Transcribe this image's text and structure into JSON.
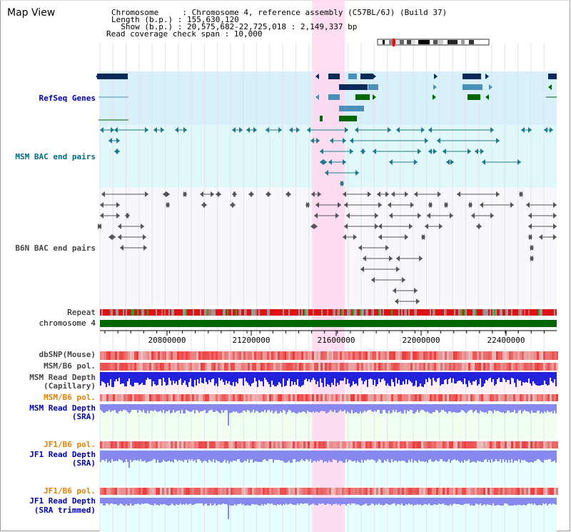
{
  "title": "Map View",
  "info": {
    "line1": "Chromosome     : Chromosome 4, reference assembly (C57BL/6J) (Build 37)",
    "line2": "Length (b.p.) : 155,630,120",
    "line3": "  Show (b.p.) : 20,575,682-22,725,018 : 2,149,337 bp",
    "line4": "Read coverage check span : 10,000"
  },
  "tracks": {
    "refseq": "RefSeq Genes",
    "msm_bac": "MSM BAC end pairs",
    "b6n_bac": "B6N BAC end pairs",
    "repeat": "Repeat",
    "chromosome": "chromosome 4",
    "dbsnp": "dbSNP(Mouse)",
    "msm_b6_pol_1": "MSM/B6 pol.",
    "msm_read_cap_1": "MSM Read Depth",
    "msm_read_cap_2": "(Capillary)",
    "msm_b6_pol_2": "MSM/B6 pol.",
    "msm_read_sra_1": "MSM Read Depth",
    "msm_read_sra_2": "(SRA)",
    "jf1_b6_pol_1": "JF1/B6 pol.",
    "jf1_read_sra_1": "JF1 Read Depth",
    "jf1_read_sra_2": "(SRA)",
    "jf1_b6_pol_2": "JF1/B6 pol.",
    "jf1_read_trim_1": "JF1 Read Depth",
    "jf1_read_trim_2": "(SRA trimmed)"
  },
  "axis": {
    "ticks": [
      "20800000",
      "21200000",
      "21600000",
      "22000000",
      "22400000"
    ]
  },
  "colors": {
    "highlight": "#ffd8f0",
    "refseq_bg": "#d8f0fa",
    "msm_bac_bg": "#e0f8fa",
    "gene_dark": "#0a2a5a",
    "gene_mid": "#4a90b8",
    "gene_green": "#006600",
    "chrom_bar": "#006600",
    "depth_blue": "#2222dd",
    "depth_light": "#8888ee"
  }
}
